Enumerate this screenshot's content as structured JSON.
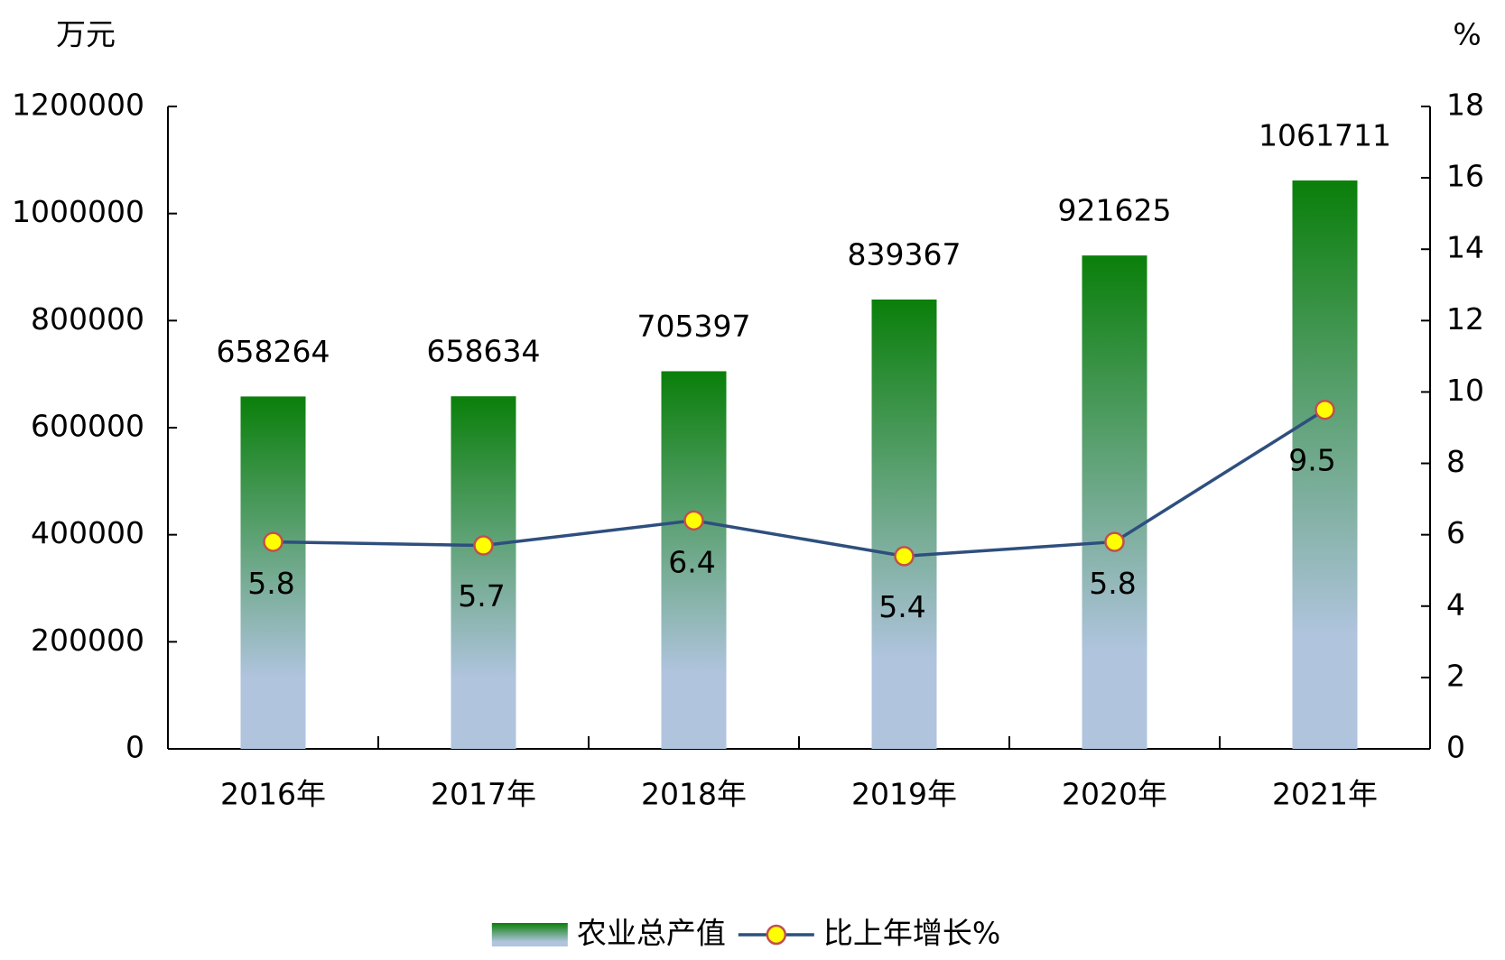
{
  "chart_data": {
    "type": "bar",
    "y_label": "万元",
    "y2_label": "%",
    "categories": [
      "2016年",
      "2017年",
      "2018年",
      "2019年",
      "2020年",
      "2021年"
    ],
    "series": [
      {
        "name": "农业总产值",
        "type": "bar",
        "color": "#0a7f0a",
        "color_bottom": "#b0c4de",
        "values": [
          658264,
          658634,
          705397,
          839367,
          921625,
          1061711
        ]
      },
      {
        "name": "比上年增长%",
        "type": "line",
        "axis": "y2",
        "color": "#2e4f7e",
        "marker_color": "#ffff00",
        "marker_edge": "#c0504d",
        "values": [
          5.8,
          5.7,
          6.4,
          5.4,
          5.8,
          9.5
        ]
      }
    ],
    "ylim": [
      0,
      1200000
    ],
    "yticks": [
      0,
      200000,
      400000,
      600000,
      800000,
      1000000,
      1200000
    ],
    "y2lim": [
      0,
      18
    ],
    "y2ticks": [
      0,
      2,
      4,
      6,
      8,
      10,
      12,
      14,
      16,
      18
    ],
    "legend": "bottom"
  }
}
